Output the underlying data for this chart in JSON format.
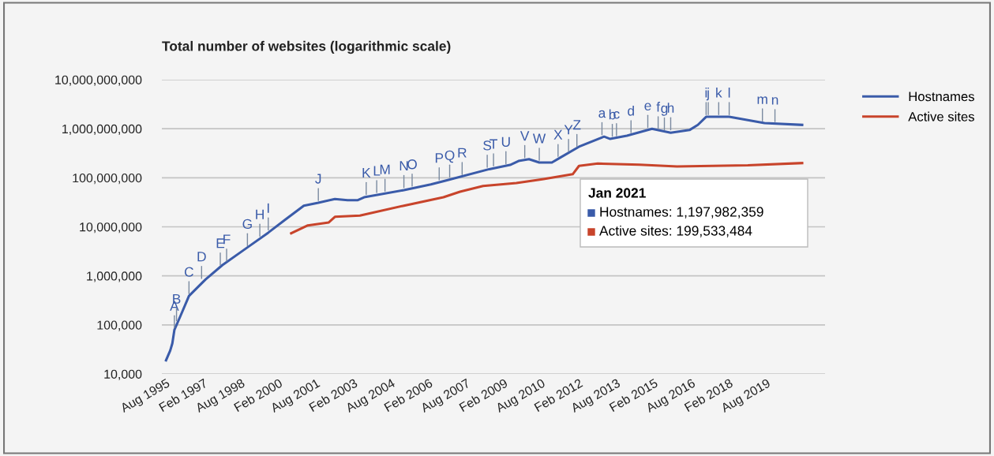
{
  "chart_data": {
    "type": "line",
    "title": "Total number of websites (logarithmic scale)",
    "log": "y",
    "grid": "y",
    "legend": "right",
    "xlim": [
      "1995-06",
      "2021-12"
    ],
    "xticks": [
      {
        "value": "1995-08",
        "label": "Aug 1995"
      },
      {
        "value": "1997-02",
        "label": "Feb 1997"
      },
      {
        "value": "1998-08",
        "label": "Aug 1998"
      },
      {
        "value": "2000-02",
        "label": "Feb 2000"
      },
      {
        "value": "2001-08",
        "label": "Aug 2001"
      },
      {
        "value": "2003-02",
        "label": "Feb 2003"
      },
      {
        "value": "2004-08",
        "label": "Aug 2004"
      },
      {
        "value": "2006-02",
        "label": "Feb 2006"
      },
      {
        "value": "2007-08",
        "label": "Aug 2007"
      },
      {
        "value": "2009-02",
        "label": "Feb 2009"
      },
      {
        "value": "2010-08",
        "label": "Aug 2010"
      },
      {
        "value": "2012-02",
        "label": "Feb 2012"
      },
      {
        "value": "2013-08",
        "label": "Aug 2013"
      },
      {
        "value": "2015-02",
        "label": "Feb 2015"
      },
      {
        "value": "2016-08",
        "label": "Aug 2016"
      },
      {
        "value": "2018-02",
        "label": "Feb 2018"
      },
      {
        "value": "2019-08",
        "label": "Aug 2019"
      }
    ],
    "ylim": [
      10000,
      10000000000
    ],
    "yticks": [
      {
        "value": 10000,
        "label": "10,000"
      },
      {
        "value": 100000,
        "label": "100,000"
      },
      {
        "value": 1000000,
        "label": "1,000,000"
      },
      {
        "value": 10000000,
        "label": "10,000,000"
      },
      {
        "value": 100000000,
        "label": "100,000,000"
      },
      {
        "value": 1000000000,
        "label": "1,000,000,000"
      },
      {
        "value": 10000000000,
        "label": "10,000,000,000"
      }
    ],
    "series": [
      {
        "name": "Hostnames",
        "color": "#3a5ba9",
        "x": [
          "1995-08",
          "1995-10",
          "1995-11",
          "1995-12",
          "1996-03",
          "1996-07",
          "1997-03",
          "1997-11",
          "1998-11",
          "1999-09",
          "2000-05",
          "2001-02",
          "2001-09",
          "2002-05",
          "2002-11",
          "2003-04",
          "2003-07",
          "2005-02",
          "2006-03",
          "2006-10",
          "2008-07",
          "2009-05",
          "2009-09",
          "2010-02",
          "2010-07",
          "2011-01",
          "2011-05",
          "2012-02",
          "2013-02",
          "2013-05",
          "2014-01",
          "2015-01",
          "2015-10",
          "2016-07",
          "2016-11",
          "2017-03",
          "2018-02",
          "2018-11",
          "2019-07",
          "2021-01"
        ],
        "values": [
          19000,
          30000,
          42000,
          79000,
          155000,
          390000,
          850000,
          1660000,
          3800000,
          7600000,
          13800000,
          27000000,
          31000000,
          37000000,
          35000000,
          35000000,
          40000000,
          56000000,
          73000000,
          87000000,
          150000000,
          183000000,
          220000000,
          240000000,
          205000000,
          205000000,
          257000000,
          430000000,
          690000000,
          620000000,
          720000000,
          1000000000,
          830000000,
          940000000,
          1200000000,
          1750000000,
          1750000000,
          1500000000,
          1300000000,
          1197982359
        ]
      },
      {
        "name": "Active sites",
        "color": "#c8442b",
        "x": [
          "2000-08",
          "2001-04",
          "2002-02",
          "2002-05",
          "2003-05",
          "2005-02",
          "2006-09",
          "2007-05",
          "2008-04",
          "2009-08",
          "2010-09",
          "2011-11",
          "2012-02",
          "2012-11",
          "2014-07",
          "2016-01",
          "2018-11",
          "2021-01"
        ],
        "values": [
          7400000,
          10700000,
          12300000,
          16000000,
          17000000,
          27000000,
          40000000,
          52000000,
          68000000,
          78000000,
          94000000,
          118000000,
          175000000,
          195000000,
          185000000,
          170000000,
          180000000,
          199533484
        ]
      }
    ],
    "annotations": [
      {
        "text": "A",
        "x": "1995-12",
        "y": 79000
      },
      {
        "text": "B",
        "x": "1996-01",
        "y": 110000
      },
      {
        "text": "C",
        "x": "1996-07",
        "y": 390000
      },
      {
        "text": "D",
        "x": "1997-01",
        "y": 800000
      },
      {
        "text": "E",
        "x": "1997-10",
        "y": 1500000
      },
      {
        "text": "F",
        "x": "1998-01",
        "y": 1800000
      },
      {
        "text": "G",
        "x": "1998-11",
        "y": 3700000
      },
      {
        "text": "H",
        "x": "1999-05",
        "y": 5800000
      },
      {
        "text": "I",
        "x": "1999-09",
        "y": 7800000
      },
      {
        "text": "J",
        "x": "2001-09",
        "y": 31000000
      },
      {
        "text": "K",
        "x": "2003-08",
        "y": 41000000
      },
      {
        "text": "L",
        "x": "2004-01",
        "y": 45000000
      },
      {
        "text": "M",
        "x": "2004-05",
        "y": 48000000
      },
      {
        "text": "N",
        "x": "2005-02",
        "y": 57000000
      },
      {
        "text": "O",
        "x": "2005-06",
        "y": 61000000
      },
      {
        "text": "P",
        "x": "2006-07",
        "y": 82000000
      },
      {
        "text": "Q",
        "x": "2006-12",
        "y": 93000000
      },
      {
        "text": "R",
        "x": "2007-06",
        "y": 105000000
      },
      {
        "text": "S",
        "x": "2008-06",
        "y": 148000000
      },
      {
        "text": "T",
        "x": "2008-09",
        "y": 158000000
      },
      {
        "text": "U",
        "x": "2009-03",
        "y": 175000000
      },
      {
        "text": "V",
        "x": "2009-12",
        "y": 232000000
      },
      {
        "text": "W",
        "x": "2010-07",
        "y": 205000000
      },
      {
        "text": "X",
        "x": "2011-04",
        "y": 245000000
      },
      {
        "text": "Y",
        "x": "2011-09",
        "y": 310000000
      },
      {
        "text": "Z",
        "x": "2012-01",
        "y": 390000000
      },
      {
        "text": "a",
        "x": "2013-01",
        "y": 680000000
      },
      {
        "text": "b",
        "x": "2013-06",
        "y": 630000000
      },
      {
        "text": "c",
        "x": "2013-08",
        "y": 650000000
      },
      {
        "text": "d",
        "x": "2014-03",
        "y": 750000000
      },
      {
        "text": "e",
        "x": "2014-11",
        "y": 960000000
      },
      {
        "text": "f",
        "x": "2015-04",
        "y": 900000000
      },
      {
        "text": "g",
        "x": "2015-07",
        "y": 850000000
      },
      {
        "text": "h",
        "x": "2015-10",
        "y": 860000000
      },
      {
        "text": "i",
        "x": "2017-03",
        "y": 1750000000
      },
      {
        "text": "j",
        "x": "2017-04",
        "y": 1750000000
      },
      {
        "text": "k",
        "x": "2017-09",
        "y": 1750000000
      },
      {
        "text": "l",
        "x": "2018-02",
        "y": 1750000000
      },
      {
        "text": "m",
        "x": "2019-06",
        "y": 1300000000
      },
      {
        "text": "n",
        "x": "2019-12",
        "y": 1260000000
      },
      "Jan 2021",
      "Hostnames: 1,197,982,359",
      "Active sites: 199,533,484"
    ]
  }
}
